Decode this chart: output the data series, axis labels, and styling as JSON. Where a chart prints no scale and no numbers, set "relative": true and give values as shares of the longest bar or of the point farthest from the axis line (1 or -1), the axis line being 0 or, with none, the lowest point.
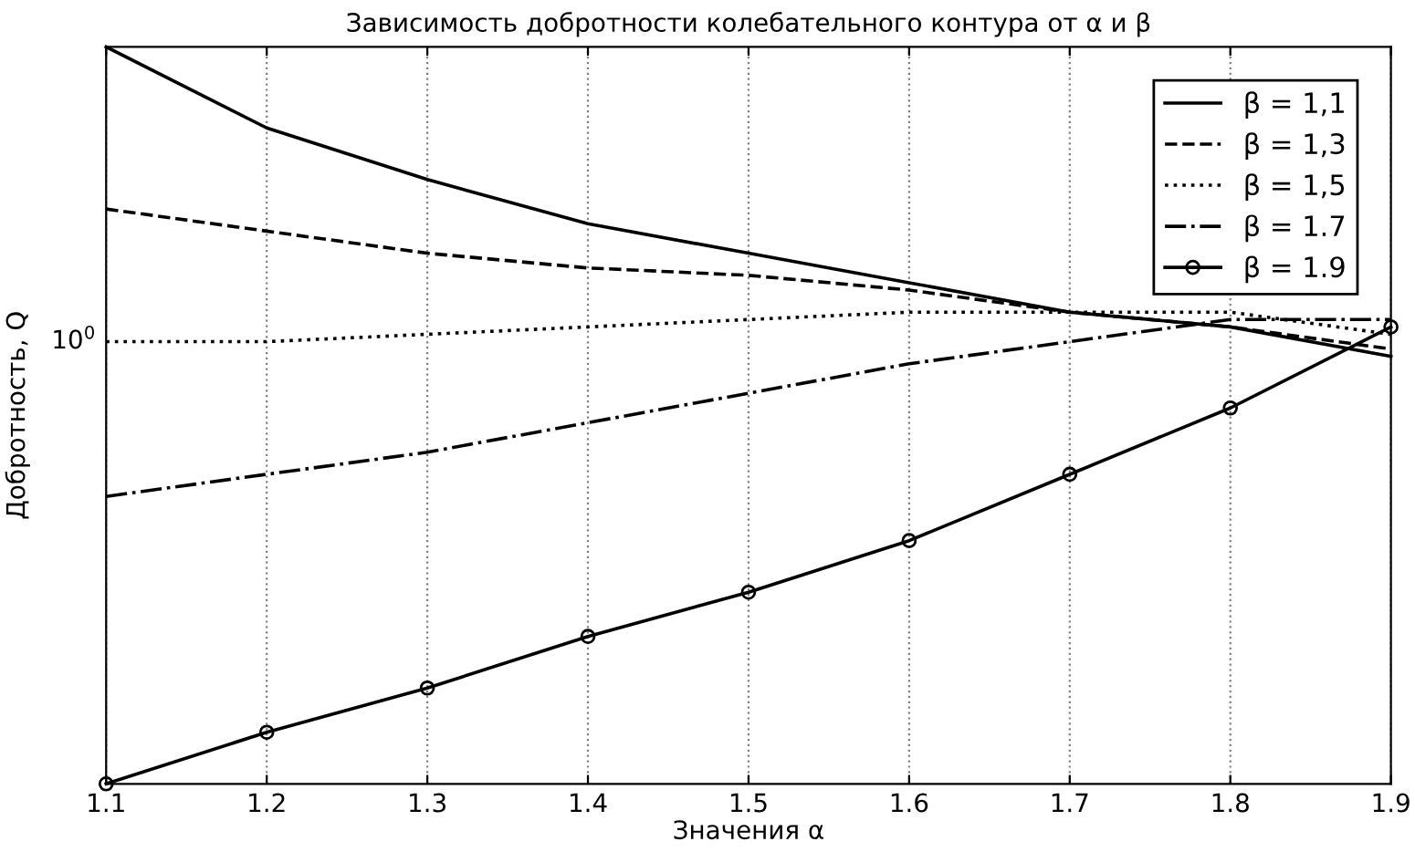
{
  "chart_data": {
    "type": "line",
    "title": "Зависимость добротности колебательного контура от α и β",
    "xlabel": "Значения α",
    "ylabel": "Добротность, Q",
    "x": [
      1.1,
      1.2,
      1.3,
      1.4,
      1.5,
      1.6,
      1.7,
      1.8,
      1.9
    ],
    "relative": true,
    "series": [
      {
        "name": "β = 1,1",
        "color": "#000000",
        "line_style": "solid",
        "marker": "none",
        "values": [
          1.0,
          0.89,
          0.82,
          0.76,
          0.72,
          0.68,
          0.64,
          0.62,
          0.58
        ]
      },
      {
        "name": "β = 1,3",
        "color": "#000000",
        "line_style": "dashed",
        "marker": "none",
        "values": [
          0.78,
          0.75,
          0.72,
          0.7,
          0.69,
          0.67,
          0.64,
          0.62,
          0.59
        ]
      },
      {
        "name": "β = 1,5",
        "color": "#000000",
        "line_style": "dotted",
        "marker": "none",
        "values": [
          0.6,
          0.6,
          0.61,
          0.62,
          0.63,
          0.64,
          0.64,
          0.64,
          0.61
        ]
      },
      {
        "name": "β = 1.7",
        "color": "#000000",
        "line_style": "dashdot",
        "marker": "none",
        "values": [
          0.39,
          0.42,
          0.45,
          0.49,
          0.53,
          0.57,
          0.6,
          0.63,
          0.63
        ]
      },
      {
        "name": "β = 1.9",
        "color": "#000000",
        "line_style": "solid",
        "marker": "circle",
        "values": [
          0.0,
          0.07,
          0.13,
          0.2,
          0.26,
          0.33,
          0.42,
          0.51,
          0.62
        ]
      }
    ],
    "xlim": [
      1.1,
      1.9
    ],
    "xticks": [
      1.1,
      1.2,
      1.3,
      1.4,
      1.5,
      1.6,
      1.7,
      1.8,
      1.9
    ],
    "annotations": [
      {
        "text": "10$^{0}$",
        "x": 1.1,
        "y": 0.6
      }
    ],
    "grid": "x",
    "legend": "top right"
  }
}
